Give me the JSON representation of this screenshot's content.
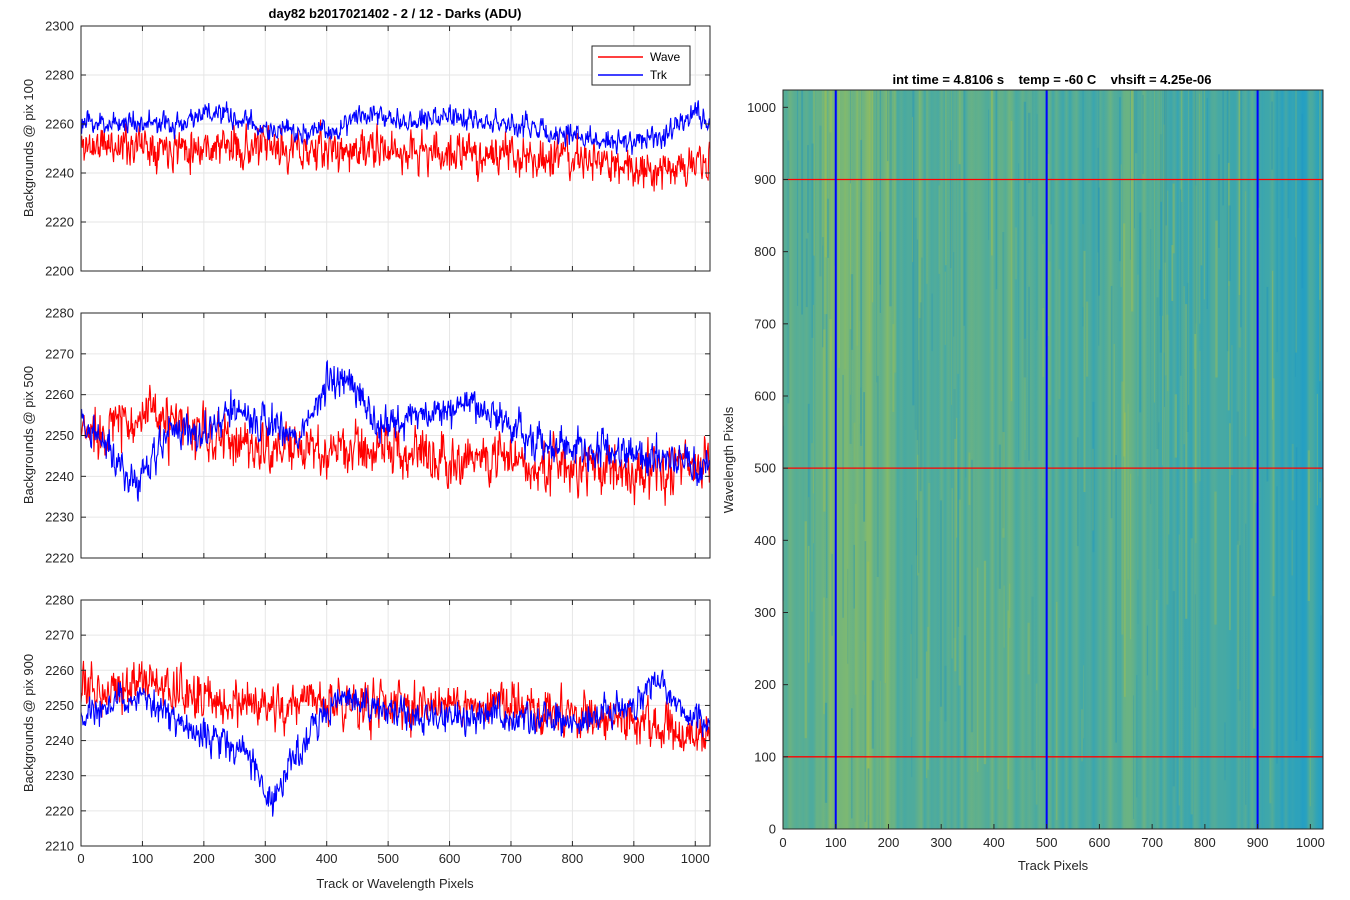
{
  "figure_title": "day82 b2017021402 - 2 / 12 - Darks (ADU)",
  "colors": {
    "wave": "#ff0000",
    "trk": "#0000ff",
    "grid": "#e6e6e6",
    "axis": "#262626"
  },
  "chart_data": [
    {
      "type": "line",
      "title": "day82 b2017021402 - 2 / 12 - Darks (ADU)",
      "ylabel": "Backgrounds @ pix 100",
      "xlabel": "",
      "xlim": [
        0,
        1024
      ],
      "ylim": [
        2200,
        2300
      ],
      "xticks": [
        0,
        100,
        200,
        300,
        400,
        500,
        600,
        700,
        800,
        900,
        1000
      ],
      "yticks": [
        2200,
        2220,
        2240,
        2260,
        2280,
        2300
      ],
      "grid": true,
      "legend": {
        "position": "top-right",
        "entries": [
          "Wave",
          "Trk"
        ]
      },
      "series": [
        {
          "name": "Wave",
          "color": "#ff0000",
          "mean_profile": [
            [
              0,
              2251
            ],
            [
              100,
              2252
            ],
            [
              200,
              2251
            ],
            [
              300,
              2250
            ],
            [
              400,
              2249
            ],
            [
              500,
              2249
            ],
            [
              600,
              2248
            ],
            [
              700,
              2247
            ],
            [
              800,
              2246
            ],
            [
              900,
              2242
            ],
            [
              1000,
              2243
            ],
            [
              1024,
              2244
            ]
          ],
          "noise": 9,
          "seed": 11
        },
        {
          "name": "Trk",
          "color": "#0000ff",
          "mean_profile": [
            [
              0,
              2260
            ],
            [
              100,
              2261
            ],
            [
              150,
              2259
            ],
            [
              200,
              2265
            ],
            [
              250,
              2262
            ],
            [
              300,
              2258
            ],
            [
              350,
              2256
            ],
            [
              420,
              2258
            ],
            [
              460,
              2266
            ],
            [
              500,
              2262
            ],
            [
              600,
              2263
            ],
            [
              700,
              2260
            ],
            [
              800,
              2255
            ],
            [
              900,
              2252
            ],
            [
              950,
              2256
            ],
            [
              1000,
              2264
            ],
            [
              1024,
              2262
            ]
          ],
          "noise": 5,
          "seed": 23
        }
      ]
    },
    {
      "type": "line",
      "title": "",
      "ylabel": "Backgrounds @ pix 500",
      "xlabel": "",
      "xlim": [
        0,
        1024
      ],
      "ylim": [
        2220,
        2280
      ],
      "xticks": [
        0,
        100,
        200,
        300,
        400,
        500,
        600,
        700,
        800,
        900,
        1000
      ],
      "yticks": [
        2220,
        2230,
        2240,
        2250,
        2260,
        2270,
        2280
      ],
      "grid": true,
      "series": [
        {
          "name": "Wave",
          "color": "#ff0000",
          "mean_profile": [
            [
              0,
              2250
            ],
            [
              100,
              2255
            ],
            [
              200,
              2250
            ],
            [
              300,
              2247
            ],
            [
              400,
              2246
            ],
            [
              500,
              2247
            ],
            [
              600,
              2245
            ],
            [
              700,
              2244
            ],
            [
              800,
              2242
            ],
            [
              900,
              2241
            ],
            [
              1024,
              2243
            ]
          ],
          "noise": 7,
          "seed": 37
        },
        {
          "name": "Trk",
          "color": "#0000ff",
          "mean_profile": [
            [
              0,
              2254
            ],
            [
              50,
              2246
            ],
            [
              80,
              2238
            ],
            [
              120,
              2244
            ],
            [
              150,
              2252
            ],
            [
              200,
              2250
            ],
            [
              250,
              2256
            ],
            [
              300,
              2253
            ],
            [
              350,
              2249
            ],
            [
              400,
              2262
            ],
            [
              430,
              2266
            ],
            [
              480,
              2252
            ],
            [
              550,
              2255
            ],
            [
              650,
              2258
            ],
            [
              720,
              2250
            ],
            [
              800,
              2247
            ],
            [
              900,
              2246
            ],
            [
              1000,
              2242
            ],
            [
              1024,
              2245
            ]
          ],
          "noise": 5,
          "seed": 41
        }
      ]
    },
    {
      "type": "line",
      "title": "",
      "ylabel": "Backgrounds @ pix 900",
      "xlabel": "Track or Wavelength Pixels",
      "xlim": [
        0,
        1024
      ],
      "ylim": [
        2210,
        2280
      ],
      "xticks": [
        0,
        100,
        200,
        300,
        400,
        500,
        600,
        700,
        800,
        900,
        1000
      ],
      "yticks": [
        2210,
        2220,
        2230,
        2240,
        2250,
        2260,
        2270,
        2280
      ],
      "grid": true,
      "series": [
        {
          "name": "Wave",
          "color": "#ff0000",
          "mean_profile": [
            [
              0,
              2254
            ],
            [
              100,
              2257
            ],
            [
              200,
              2252
            ],
            [
              300,
              2249
            ],
            [
              400,
              2251
            ],
            [
              500,
              2250
            ],
            [
              600,
              2251
            ],
            [
              700,
              2250
            ],
            [
              800,
              2247
            ],
            [
              900,
              2246
            ],
            [
              1000,
              2240
            ],
            [
              1024,
              2241
            ]
          ],
          "noise": 7,
          "seed": 53
        },
        {
          "name": "Trk",
          "color": "#0000ff",
          "mean_profile": [
            [
              0,
              2246
            ],
            [
              60,
              2252
            ],
            [
              120,
              2250
            ],
            [
              180,
              2243
            ],
            [
              240,
              2240
            ],
            [
              280,
              2235
            ],
            [
              310,
              2220
            ],
            [
              340,
              2233
            ],
            [
              380,
              2244
            ],
            [
              420,
              2253
            ],
            [
              500,
              2248
            ],
            [
              600,
              2246
            ],
            [
              700,
              2247
            ],
            [
              800,
              2245
            ],
            [
              900,
              2250
            ],
            [
              940,
              2258
            ],
            [
              980,
              2248
            ],
            [
              1024,
              2245
            ]
          ],
          "noise": 5,
          "seed": 67
        }
      ]
    },
    {
      "type": "heatmap",
      "title": "int time = 4.8106 s    temp = -60 C    vhsift = 4.25e-06",
      "xlabel": "Track Pixels",
      "ylabel": "Wavelength Pixels",
      "xlim": [
        0,
        1024
      ],
      "ylim": [
        0,
        1024
      ],
      "xticks": [
        0,
        100,
        200,
        300,
        400,
        500,
        600,
        700,
        800,
        900,
        1000
      ],
      "yticks": [
        0,
        100,
        200,
        300,
        400,
        500,
        600,
        700,
        800,
        900,
        1000
      ],
      "colormap": "parula",
      "low_color": "#1f9ec8",
      "high_color": "#a9c44a",
      "horizontal_markers": {
        "color": "#ff0000",
        "values": [
          100,
          500,
          900
        ]
      },
      "vertical_markers": {
        "color": "#0000ff",
        "values": [
          100,
          500,
          900
        ]
      }
    }
  ]
}
